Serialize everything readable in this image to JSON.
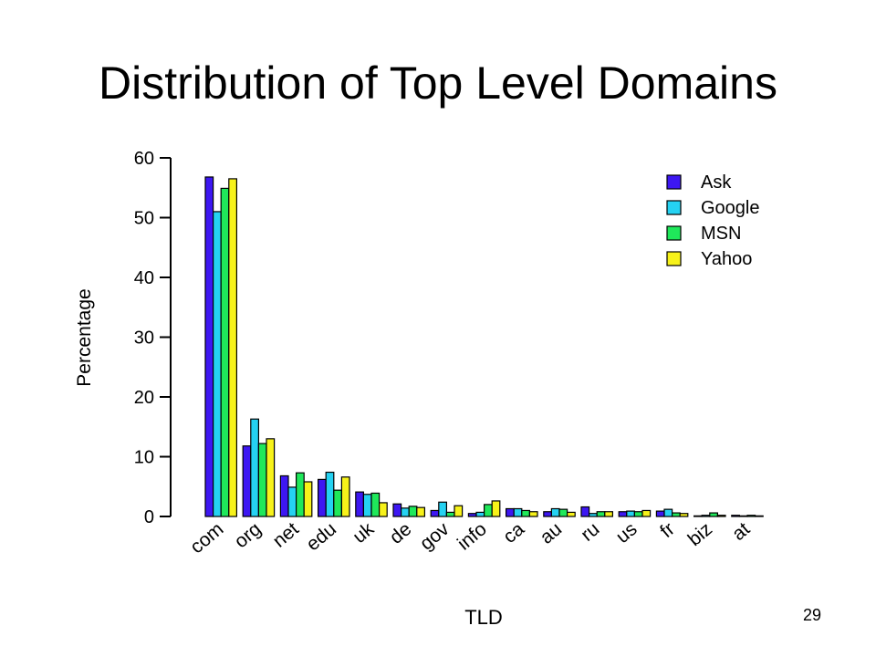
{
  "slide": {
    "title": "Distribution of Top Level Domains",
    "page_number": "29"
  },
  "chart_data": {
    "type": "bar",
    "title": "",
    "xlabel": "TLD",
    "ylabel": "Percentage",
    "ylim": [
      0,
      60
    ],
    "yticks": [
      0,
      10,
      20,
      30,
      40,
      50,
      60
    ],
    "legend_position": "top-right",
    "categories": [
      "com",
      "org",
      "net",
      "edu",
      "uk",
      "de",
      "gov",
      "info",
      "ca",
      "au",
      "ru",
      "us",
      "fr",
      "biz",
      "at"
    ],
    "series": [
      {
        "name": "Ask",
        "color": "#3d17f2",
        "values": [
          56.8,
          11.8,
          6.8,
          6.2,
          4.1,
          2.1,
          1.0,
          0.5,
          1.3,
          0.8,
          1.6,
          0.8,
          0.9,
          0.1,
          0.2
        ]
      },
      {
        "name": "Google",
        "color": "#25d2f2",
        "values": [
          51.0,
          16.3,
          4.9,
          7.4,
          3.7,
          1.4,
          2.4,
          0.7,
          1.3,
          1.3,
          0.5,
          0.9,
          1.2,
          0.2,
          0.1
        ]
      },
      {
        "name": "MSN",
        "color": "#1fe85a",
        "values": [
          54.9,
          12.2,
          7.3,
          4.4,
          3.9,
          1.7,
          0.7,
          2.0,
          1.0,
          1.2,
          0.8,
          0.8,
          0.6,
          0.6,
          0.2
        ]
      },
      {
        "name": "Yahoo",
        "color": "#f7f21a",
        "values": [
          56.5,
          13.0,
          5.8,
          6.6,
          2.3,
          1.5,
          1.8,
          2.6,
          0.8,
          0.7,
          0.8,
          1.0,
          0.5,
          0.2,
          0.1
        ]
      }
    ]
  }
}
